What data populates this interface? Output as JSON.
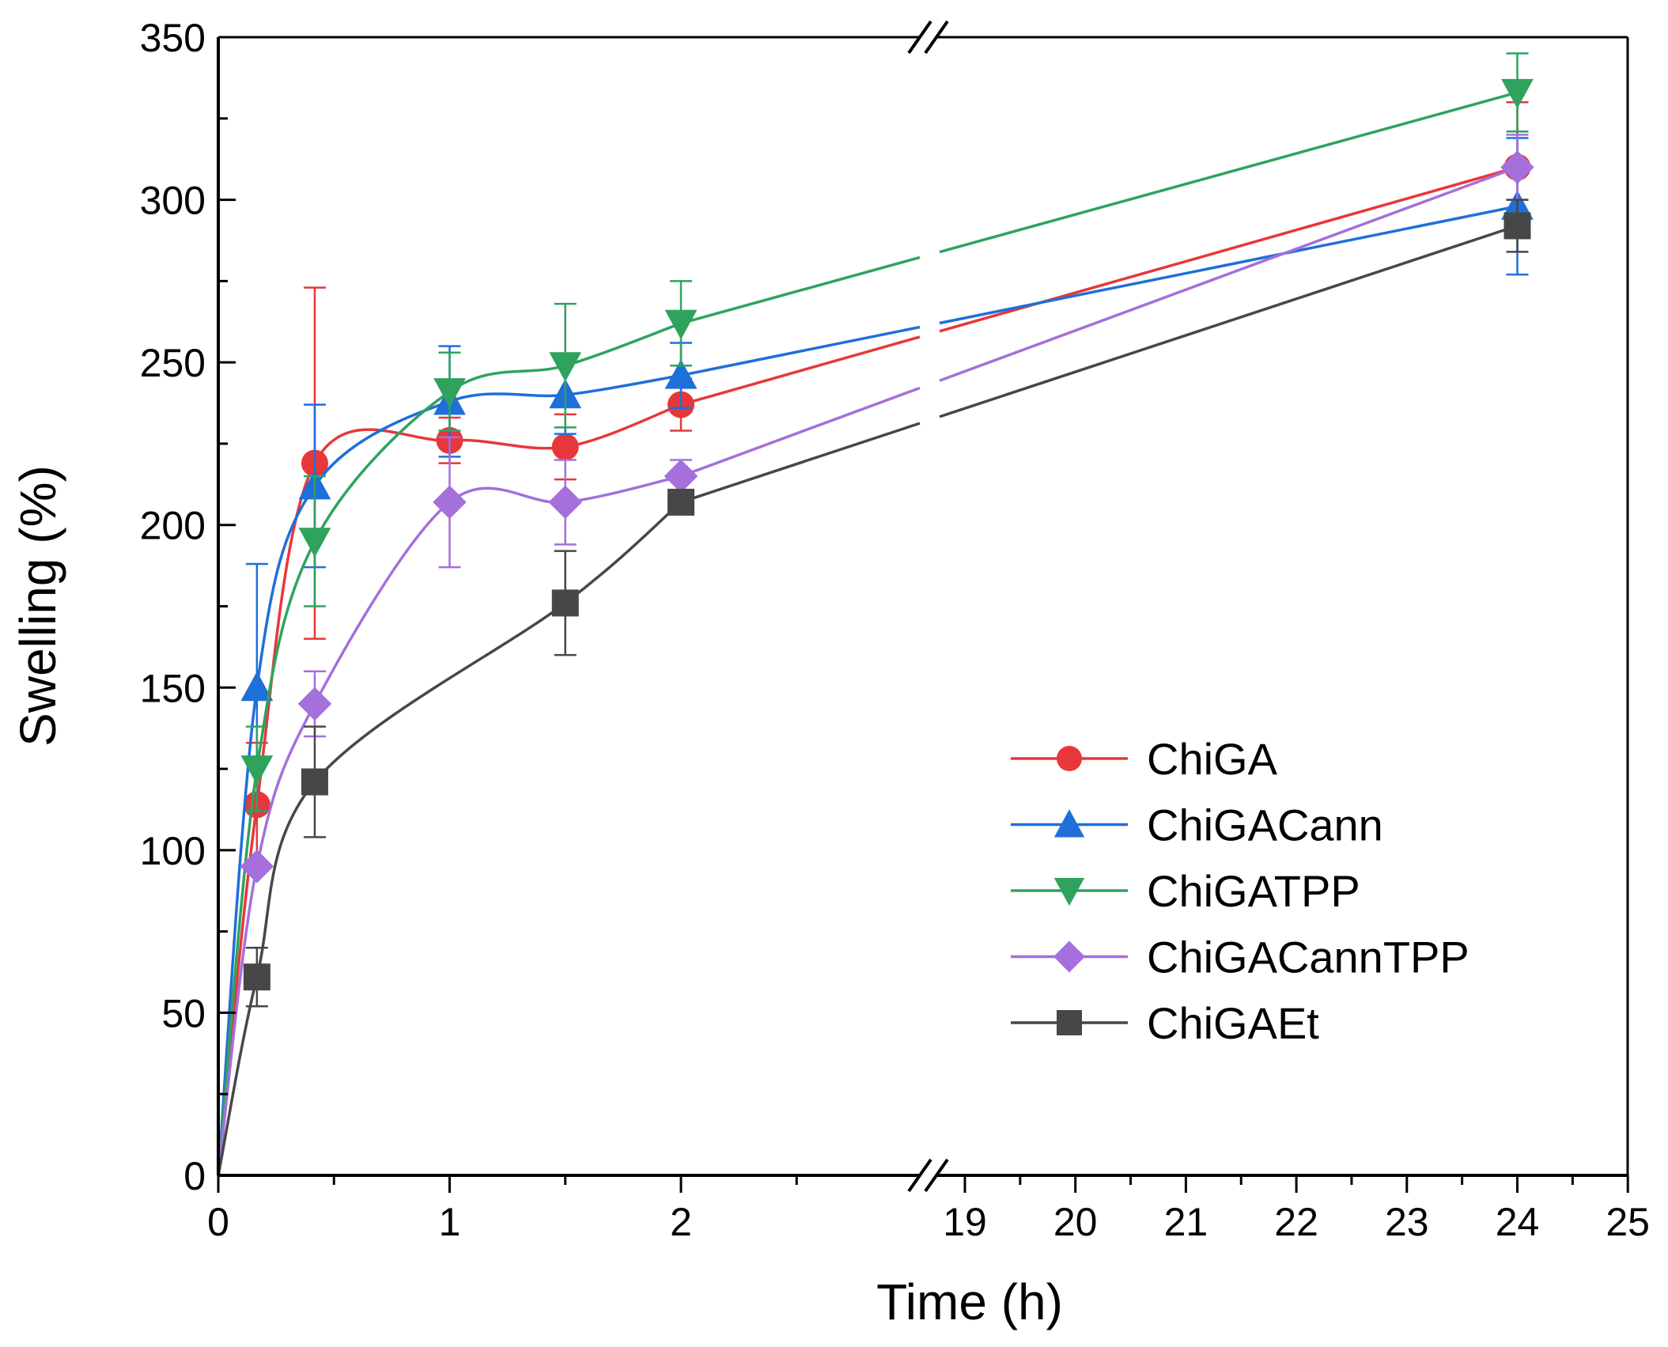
{
  "chart_data": {
    "type": "line",
    "title": "",
    "xlabel": "Time (h)",
    "ylabel": "Swelling (%)",
    "ylim": [
      0,
      350
    ],
    "xlim_segments": [
      [
        0,
        3.04
      ],
      [
        18.74,
        25
      ]
    ],
    "x_axis_break": true,
    "y_ticks": [
      0,
      50,
      100,
      150,
      200,
      250,
      300,
      350
    ],
    "x_ticks": [
      0,
      1,
      2,
      19,
      20,
      21,
      22,
      23,
      24,
      25
    ],
    "legend_position": "center-right",
    "x": [
      0,
      0.167,
      0.417,
      1,
      1.5,
      2,
      24
    ],
    "series": [
      {
        "name": "ChiGA",
        "color": "#e8373a",
        "marker": "circle",
        "values": [
          0,
          114,
          219,
          226,
          224,
          237,
          310
        ],
        "errors": [
          0,
          19,
          54,
          7,
          10,
          8,
          20
        ]
      },
      {
        "name": "ChiGACann",
        "color": "#1f6fd9",
        "marker": "triangle-up",
        "values": [
          0,
          150,
          212,
          238,
          240,
          246,
          298
        ],
        "errors": [
          0,
          38,
          25,
          17,
          12,
          10,
          21
        ]
      },
      {
        "name": "ChiGATPP",
        "color": "#2fa35e",
        "marker": "triangle-down",
        "values": [
          0,
          125,
          195,
          241,
          249,
          262,
          333
        ],
        "errors": [
          0,
          13,
          20,
          12,
          19,
          13,
          12
        ]
      },
      {
        "name": "ChiGACannTPP",
        "color": "#a56fdc",
        "marker": "diamond",
        "values": [
          0,
          95,
          145,
          207,
          207,
          215,
          310
        ],
        "errors": [
          0,
          0,
          10,
          20,
          13,
          5,
          10
        ]
      },
      {
        "name": "ChiGAEt",
        "color": "#474747",
        "marker": "square",
        "values": [
          0,
          61,
          121,
          null,
          176,
          207,
          292
        ],
        "errors": [
          0,
          9,
          17,
          null,
          16,
          0,
          8
        ]
      }
    ]
  }
}
